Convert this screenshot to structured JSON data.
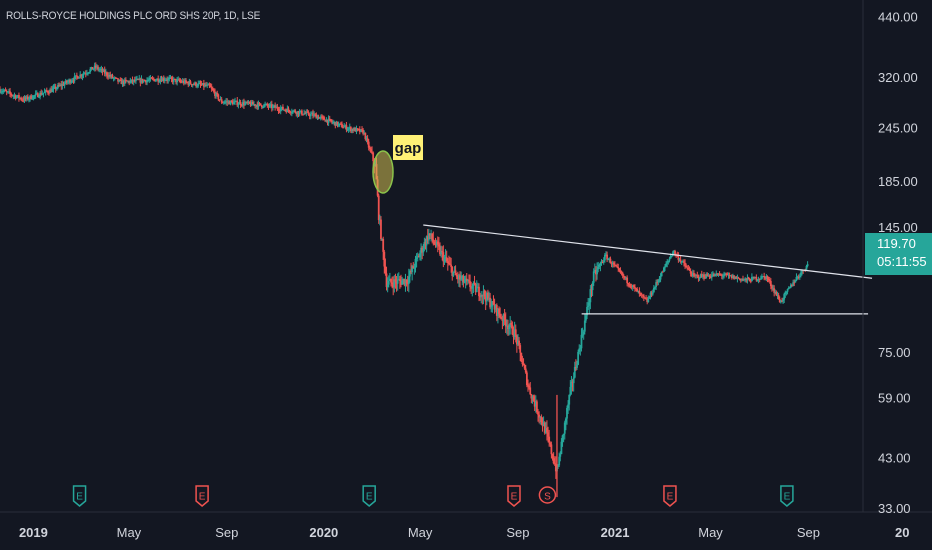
{
  "header": {
    "title": "ROLLS-ROYCE HOLDINGS PLC ORD SHS 20P, 1D, LSE"
  },
  "price_badge": {
    "price": "119.70",
    "countdown": "05:11:55"
  },
  "annotation": {
    "label": "gap"
  },
  "colors": {
    "background": "#131722",
    "up": "#26a69a",
    "down": "#ef5350",
    "line": "#e0e3eb",
    "annotation": "#fff176"
  },
  "events": [
    {
      "label": "E",
      "date": "2019-02-28",
      "kind": "earnings",
      "color": "#26a69a"
    },
    {
      "label": "E",
      "date": "2019-08-01",
      "kind": "earnings",
      "color": "#ef5350"
    },
    {
      "label": "E",
      "date": "2020-02-27",
      "kind": "earnings",
      "color": "#26a69a"
    },
    {
      "label": "E",
      "date": "2020-08-27",
      "kind": "earnings",
      "color": "#ef5350"
    },
    {
      "label": "S",
      "date": "2020-10-08",
      "kind": "split",
      "color": "#ef5350"
    },
    {
      "label": "E",
      "date": "2021-03-11",
      "kind": "earnings",
      "color": "#ef5350"
    },
    {
      "label": "E",
      "date": "2021-08-05",
      "kind": "earnings",
      "color": "#26a69a"
    }
  ],
  "chart_data": {
    "type": "candlestick",
    "title": "ROLLS-ROYCE HOLDINGS PLC ORD SHS 20P, 1D, LSE",
    "y_scale": "log",
    "y_ticks": [
      "440.00",
      "320.00",
      "245.00",
      "185.00",
      "145.00",
      "75.00",
      "59.00",
      "43.00",
      "33.00"
    ],
    "x_ticks": [
      "2019",
      "May",
      "Sep",
      "2020",
      "May",
      "Sep",
      "2021",
      "May",
      "Sep",
      "20"
    ],
    "x_range": [
      "2018-11-20",
      "2021-11-30"
    ],
    "last_price": 119.7,
    "price_path": [
      [
        "2018-11-20",
        300
      ],
      [
        "2018-12-20",
        285
      ],
      [
        "2019-01-25",
        300
      ],
      [
        "2019-03-20",
        338
      ],
      [
        "2019-04-20",
        312
      ],
      [
        "2019-06-15",
        318
      ],
      [
        "2019-08-10",
        305
      ],
      [
        "2019-08-25",
        282
      ],
      [
        "2019-10-20",
        276
      ],
      [
        "2019-12-20",
        262
      ],
      [
        "2020-01-31",
        245
      ],
      [
        "2020-02-20",
        240
      ],
      [
        "2020-03-06",
        200
      ],
      [
        "2020-03-10",
        155
      ],
      [
        "2020-03-20",
        108
      ],
      [
        "2020-04-15",
        110
      ],
      [
        "2020-05-12",
        140
      ],
      [
        "2020-06-15",
        112
      ],
      [
        "2020-07-20",
        102
      ],
      [
        "2020-08-28",
        83
      ],
      [
        "2020-09-15",
        62
      ],
      [
        "2020-10-05",
        50
      ],
      [
        "2020-10-20",
        40
      ],
      [
        "2020-11-05",
        60
      ],
      [
        "2020-11-25",
        90
      ],
      [
        "2020-12-05",
        112
      ],
      [
        "2020-12-20",
        125
      ],
      [
        "2021-01-15",
        110
      ],
      [
        "2021-02-10",
        98
      ],
      [
        "2021-03-15",
        128
      ],
      [
        "2021-04-10",
        112
      ],
      [
        "2021-05-15",
        113
      ],
      [
        "2021-06-15",
        110
      ],
      [
        "2021-07-10",
        112
      ],
      [
        "2021-07-28",
        98
      ],
      [
        "2021-08-15",
        110
      ],
      [
        "2021-09-01",
        119.7
      ]
    ],
    "trendlines": [
      {
        "from": [
          "2020-05-05",
          147
        ],
        "to": [
          "2021-11-20",
          111
        ]
      },
      {
        "from": [
          "2020-11-20",
          92
        ],
        "to": [
          "2021-11-15",
          92
        ]
      }
    ]
  }
}
